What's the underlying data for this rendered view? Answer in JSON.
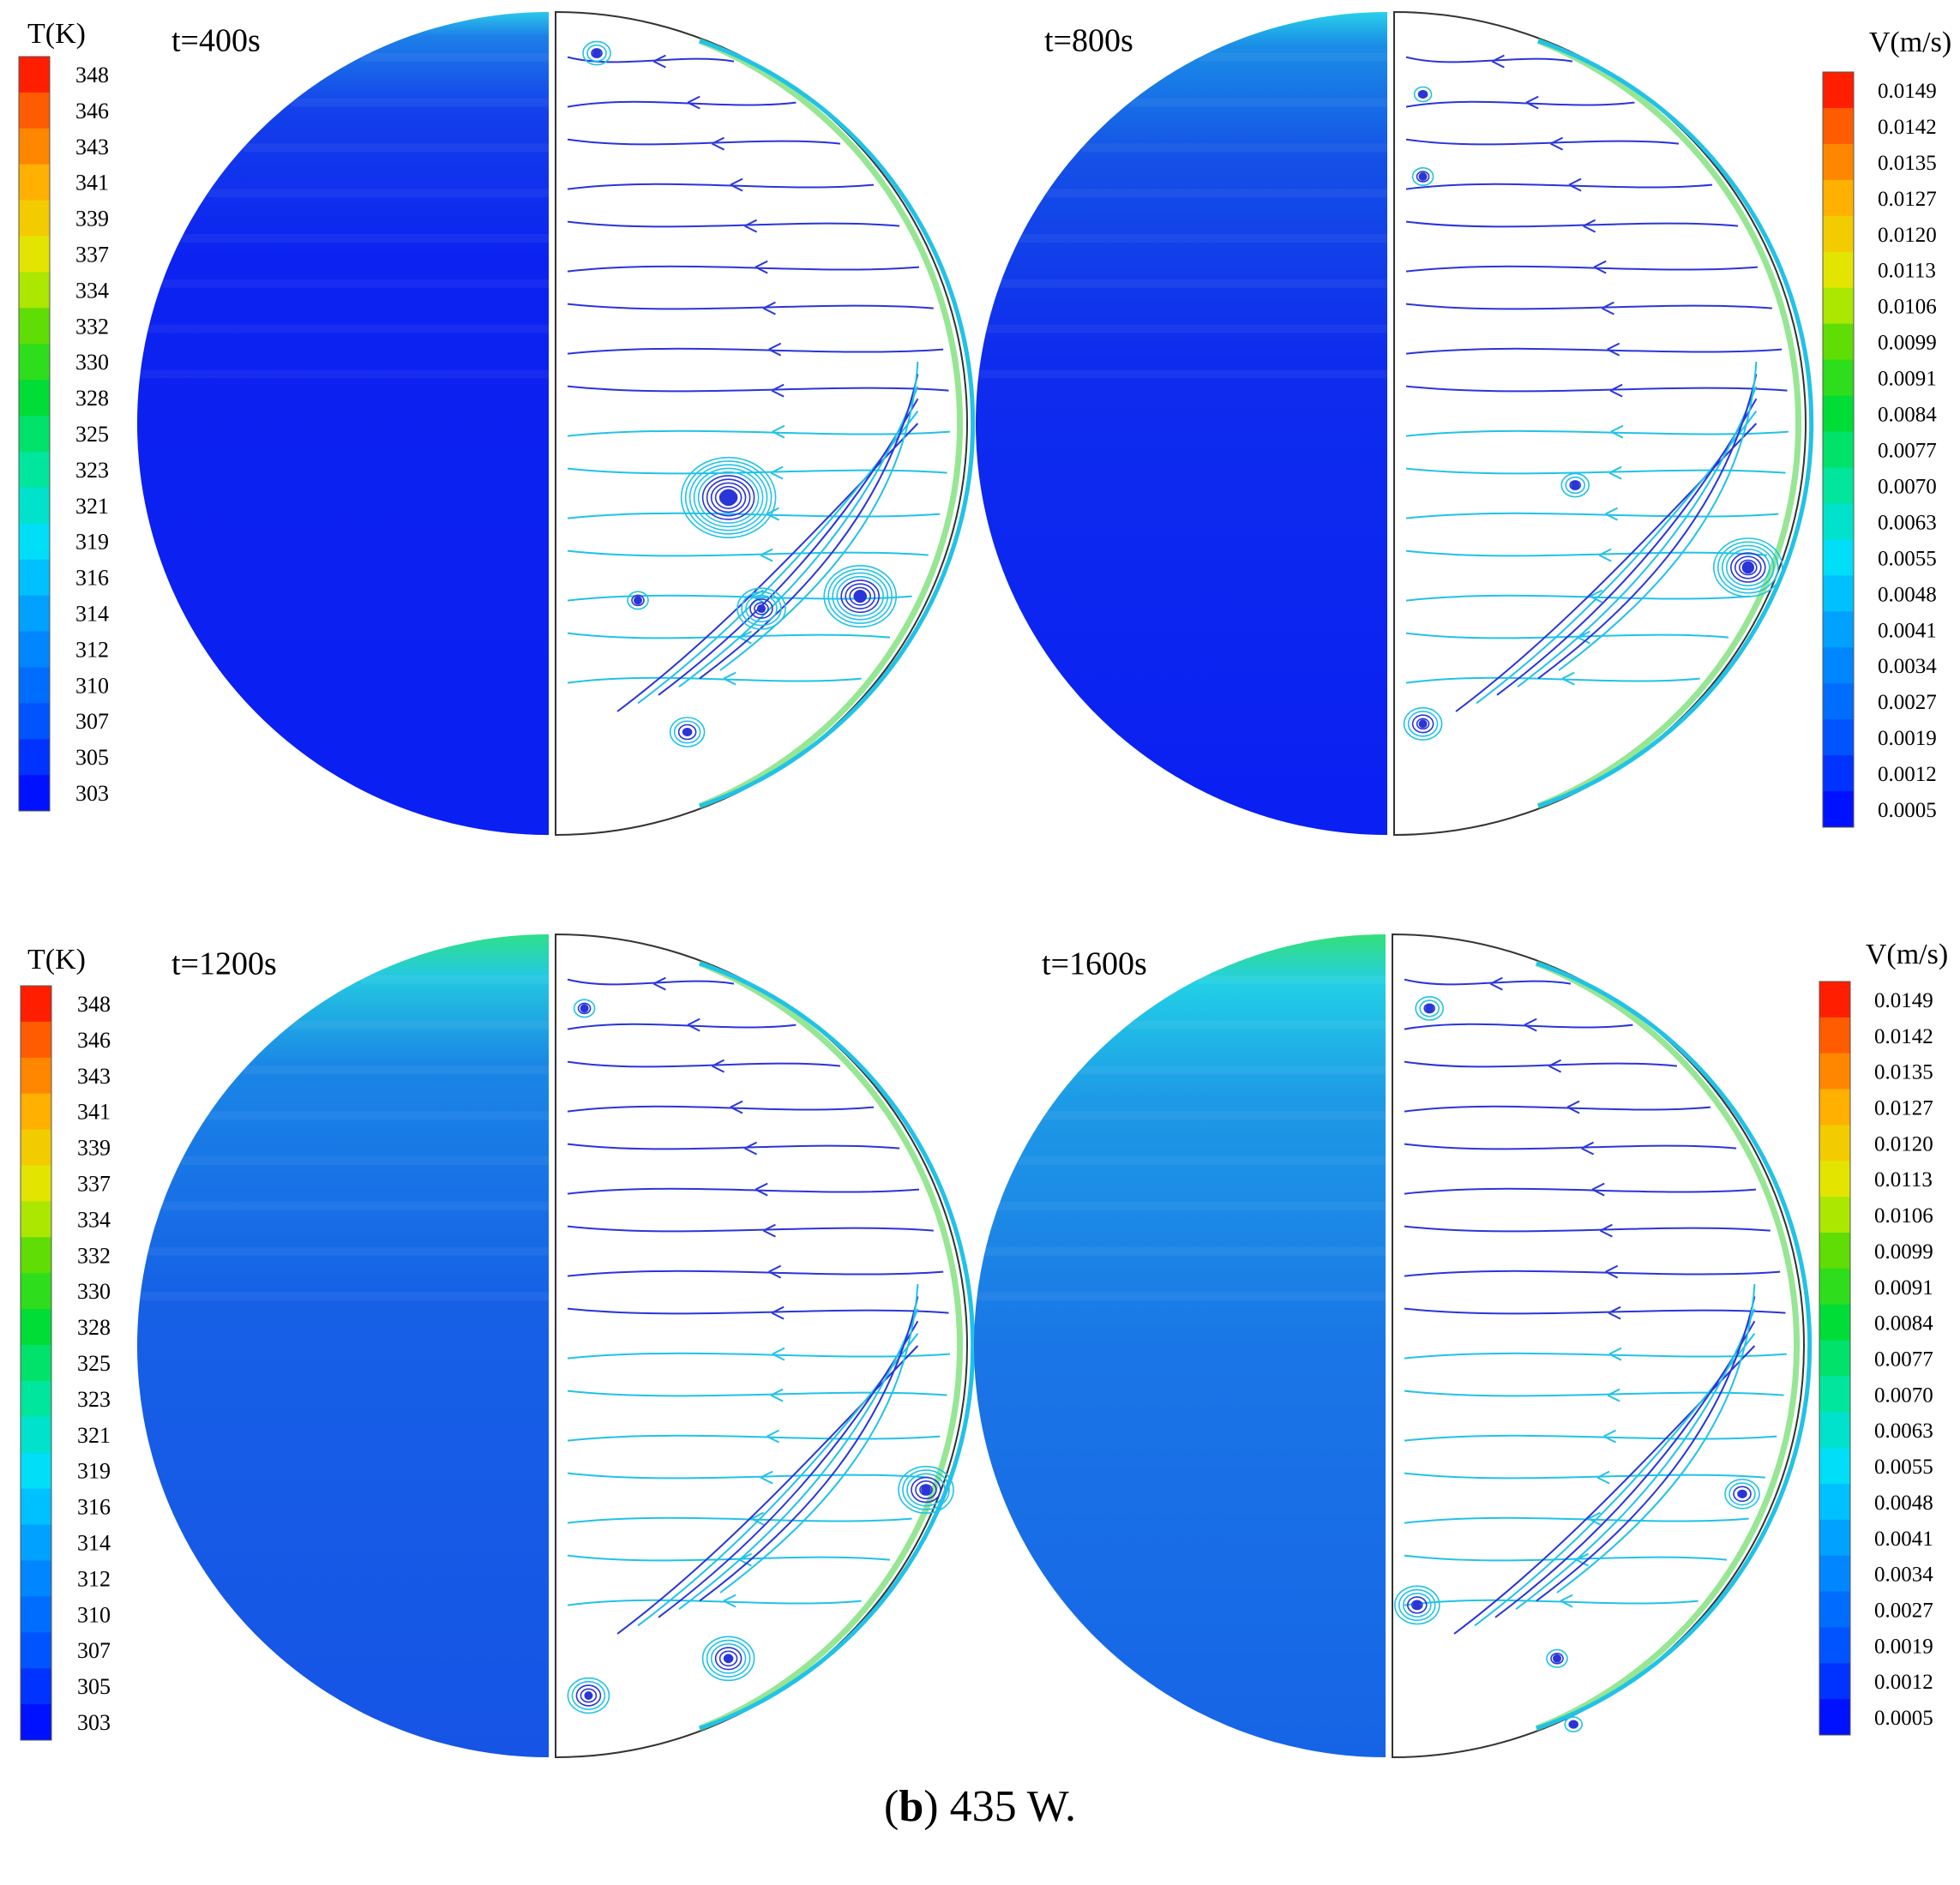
{
  "figure": {
    "caption_tag": "b",
    "caption_text": "435 W.",
    "panels": [
      {
        "time_label": "t=400s"
      },
      {
        "time_label": "t=800s"
      },
      {
        "time_label": "t=1200s"
      },
      {
        "time_label": "t=1600s"
      }
    ],
    "temperature_legend": {
      "title": "T(K)",
      "ticks": [
        "348",
        "346",
        "343",
        "341",
        "339",
        "337",
        "334",
        "332",
        "330",
        "328",
        "325",
        "323",
        "321",
        "319",
        "316",
        "314",
        "312",
        "310",
        "307",
        "305",
        "303"
      ]
    },
    "velocity_legend": {
      "title": "V(m/s)",
      "ticks": [
        "0.0149",
        "0.0142",
        "0.0135",
        "0.0127",
        "0.0120",
        "0.0113",
        "0.0106",
        "0.0099",
        "0.0091",
        "0.0084",
        "0.0077",
        "0.0070",
        "0.0063",
        "0.0055",
        "0.0048",
        "0.0041",
        "0.0034",
        "0.0027",
        "0.0019",
        "0.0012",
        "0.0005"
      ]
    },
    "colors": {
      "temp_cold": "#0a1ff2",
      "temp_field": "#1650e6",
      "temp_top_warm": "#20b8e8",
      "streamline_blue": "#2a35d8",
      "streamline_cyan": "#22c2e6",
      "wall_green": "#3fd23a"
    }
  }
}
